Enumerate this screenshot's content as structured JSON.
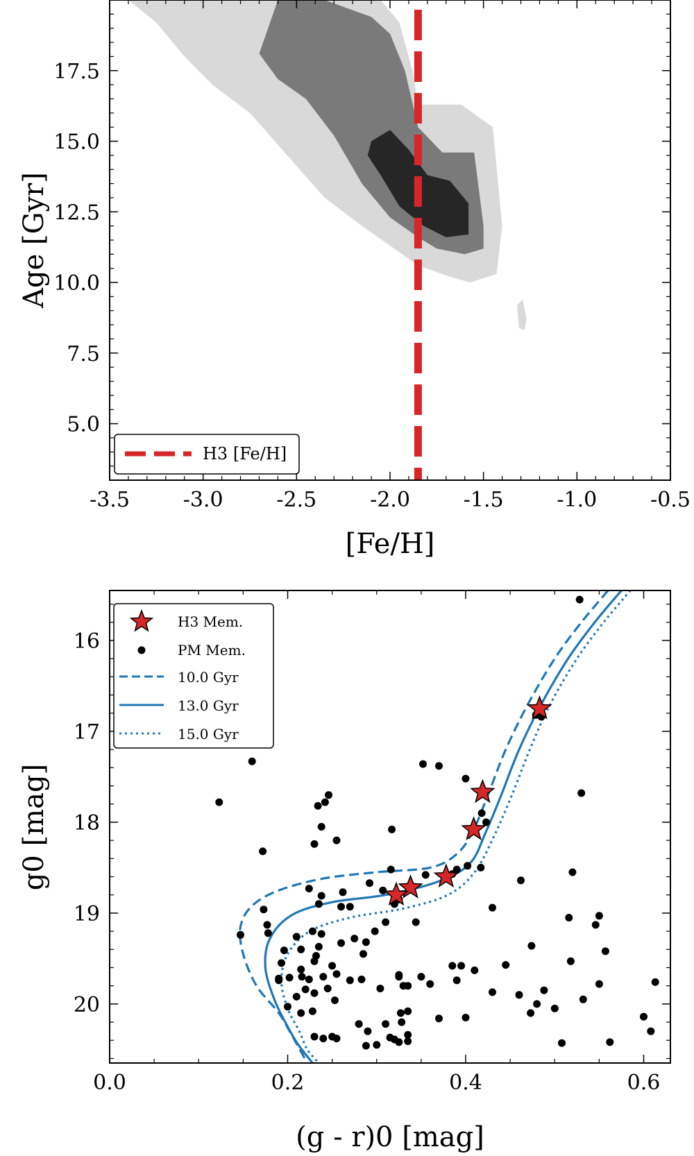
{
  "colors": {
    "contour_outer": "#d9d9d9",
    "contour_mid": "#7a7a7a",
    "contour_inner": "#262626",
    "h3_line": "#d62728",
    "isochrone": "#1f77b4",
    "star_fill": "#d62728",
    "pm_point": "#000000"
  },
  "chart_data": [
    {
      "type": "contour",
      "title": "",
      "xlabel": "[Fe/H]",
      "ylabel": "Age [Gyr]",
      "xlim": [
        -3.5,
        -0.5
      ],
      "ylim": [
        3.0,
        20.0
      ],
      "xticks": [
        -3.5,
        -3.0,
        -2.5,
        -2.0,
        -1.5,
        -1.0,
        -0.5
      ],
      "xtick_labels": [
        "-3.5",
        "-3.0",
        "-2.5",
        "-2.0",
        "-1.5",
        "-1.0",
        "-0.5"
      ],
      "yticks": [
        5.0,
        7.5,
        10.0,
        12.5,
        15.0,
        17.5
      ],
      "ytick_labels": [
        "5.0",
        "7.5",
        "10.0",
        "12.5",
        "15.0",
        "17.5"
      ],
      "h3_feh": -1.85,
      "legend": {
        "location": "lower-left",
        "entries": [
          {
            "label": "H3 [Fe/H]",
            "style": "dashed-red"
          }
        ]
      },
      "contours": [
        {
          "level": "outer",
          "points": [
            [
              -3.4,
              20.0
            ],
            [
              -2.05,
              20.0
            ],
            [
              -1.95,
              19.2
            ],
            [
              -1.88,
              17.5
            ],
            [
              -1.85,
              16.3
            ],
            [
              -1.62,
              16.3
            ],
            [
              -1.45,
              15.5
            ],
            [
              -1.4,
              12.0
            ],
            [
              -1.43,
              10.3
            ],
            [
              -1.57,
              10.0
            ],
            [
              -1.68,
              10.2
            ],
            [
              -1.85,
              10.6
            ],
            [
              -2.0,
              11.3
            ],
            [
              -2.15,
              12.0
            ],
            [
              -2.35,
              13.0
            ],
            [
              -2.55,
              14.5
            ],
            [
              -2.75,
              16.0
            ],
            [
              -2.95,
              17.0
            ],
            [
              -3.1,
              18.0
            ],
            [
              -3.25,
              19.2
            ]
          ]
        },
        {
          "level": "outer-island",
          "points": [
            [
              -1.32,
              9.2
            ],
            [
              -1.29,
              9.4
            ],
            [
              -1.27,
              8.7
            ],
            [
              -1.28,
              8.3
            ],
            [
              -1.31,
              8.4
            ]
          ]
        },
        {
          "level": "mid",
          "points": [
            [
              -2.6,
              20.0
            ],
            [
              -2.35,
              20.0
            ],
            [
              -2.1,
              19.4
            ],
            [
              -2.0,
              18.8
            ],
            [
              -1.92,
              17.5
            ],
            [
              -1.85,
              15.5
            ],
            [
              -1.72,
              14.6
            ],
            [
              -1.55,
              14.6
            ],
            [
              -1.5,
              12.0
            ],
            [
              -1.5,
              11.2
            ],
            [
              -1.6,
              11.0
            ],
            [
              -1.75,
              11.2
            ],
            [
              -1.85,
              11.6
            ],
            [
              -2.0,
              12.3
            ],
            [
              -2.15,
              13.5
            ],
            [
              -2.3,
              15.2
            ],
            [
              -2.45,
              16.5
            ],
            [
              -2.6,
              17.2
            ],
            [
              -2.7,
              18.1
            ]
          ]
        },
        {
          "level": "inner",
          "points": [
            [
              -2.1,
              15.0
            ],
            [
              -2.0,
              15.4
            ],
            [
              -1.9,
              14.7
            ],
            [
              -1.8,
              13.8
            ],
            [
              -1.68,
              13.6
            ],
            [
              -1.58,
              12.8
            ],
            [
              -1.58,
              11.7
            ],
            [
              -1.7,
              11.6
            ],
            [
              -1.82,
              12.0
            ],
            [
              -1.95,
              12.7
            ],
            [
              -2.05,
              13.8
            ],
            [
              -2.12,
              14.5
            ]
          ]
        }
      ]
    },
    {
      "type": "scatter",
      "title": "",
      "xlabel": "(g - r)0 [mag]",
      "ylabel": "g0 [mag]",
      "xlim": [
        0.0,
        0.63
      ],
      "ylim": [
        20.65,
        15.45
      ],
      "xticks": [
        0.0,
        0.2,
        0.4,
        0.6
      ],
      "xtick_labels": [
        "0.0",
        "0.2",
        "0.4",
        "0.6"
      ],
      "yticks": [
        16,
        17,
        18,
        19,
        20
      ],
      "ytick_labels": [
        "16",
        "17",
        "18",
        "19",
        "20"
      ],
      "legend": {
        "location": "top-left",
        "entries": [
          {
            "label": "H3 Mem.",
            "style": "red-star"
          },
          {
            "label": "PM Mem.",
            "style": "black-dot"
          },
          {
            "label": "10.0 Gyr",
            "style": "dashed-blue"
          },
          {
            "label": "13.0 Gyr",
            "style": "solid-blue"
          },
          {
            "label": "15.0 Gyr",
            "style": "dotted-blue"
          }
        ]
      },
      "isochrones": [
        {
          "name": "10.0 Gyr",
          "style": "dashed",
          "points": [
            [
              0.56,
              15.45
            ],
            [
              0.53,
              15.8
            ],
            [
              0.5,
              16.2
            ],
            [
              0.47,
              16.7
            ],
            [
              0.445,
              17.2
            ],
            [
              0.425,
              17.7
            ],
            [
              0.408,
              18.1
            ],
            [
              0.39,
              18.35
            ],
            [
              0.36,
              18.5
            ],
            [
              0.3,
              18.55
            ],
            [
              0.24,
              18.62
            ],
            [
              0.19,
              18.75
            ],
            [
              0.16,
              18.92
            ],
            [
              0.147,
              19.15
            ],
            [
              0.15,
              19.45
            ],
            [
              0.165,
              19.8
            ],
            [
              0.19,
              20.1
            ],
            [
              0.205,
              20.35
            ],
            [
              0.222,
              20.65
            ]
          ]
        },
        {
          "name": "13.0 Gyr",
          "style": "solid",
          "points": [
            [
              0.575,
              15.45
            ],
            [
              0.545,
              15.8
            ],
            [
              0.515,
              16.2
            ],
            [
              0.485,
              16.7
            ],
            [
              0.46,
              17.2
            ],
            [
              0.44,
              17.7
            ],
            [
              0.423,
              18.1
            ],
            [
              0.405,
              18.45
            ],
            [
              0.37,
              18.65
            ],
            [
              0.31,
              18.8
            ],
            [
              0.25,
              18.88
            ],
            [
              0.205,
              19.02
            ],
            [
              0.18,
              19.28
            ],
            [
              0.175,
              19.6
            ],
            [
              0.185,
              19.95
            ],
            [
              0.2,
              20.25
            ],
            [
              0.212,
              20.45
            ],
            [
              0.228,
              20.65
            ]
          ]
        },
        {
          "name": "15.0 Gyr",
          "style": "dotted",
          "points": [
            [
              0.585,
              15.45
            ],
            [
              0.555,
              15.8
            ],
            [
              0.525,
              16.2
            ],
            [
              0.495,
              16.7
            ],
            [
              0.472,
              17.2
            ],
            [
              0.452,
              17.7
            ],
            [
              0.432,
              18.15
            ],
            [
              0.41,
              18.55
            ],
            [
              0.38,
              18.8
            ],
            [
              0.33,
              18.95
            ],
            [
              0.27,
              19.05
            ],
            [
              0.225,
              19.2
            ],
            [
              0.2,
              19.45
            ],
            [
              0.193,
              19.75
            ],
            [
              0.2,
              20.05
            ],
            [
              0.213,
              20.3
            ],
            [
              0.222,
              20.5
            ],
            [
              0.235,
              20.65
            ]
          ]
        }
      ],
      "h3_members": [
        [
          0.483,
          16.75
        ],
        [
          0.419,
          17.67
        ],
        [
          0.409,
          18.08
        ],
        [
          0.378,
          18.6
        ],
        [
          0.338,
          18.72
        ],
        [
          0.322,
          18.8
        ]
      ],
      "pm_members": [
        [
          0.528,
          15.55
        ],
        [
          0.479,
          16.82
        ],
        [
          0.485,
          16.84
        ],
        [
          0.16,
          17.33
        ],
        [
          0.352,
          17.36
        ],
        [
          0.37,
          17.38
        ],
        [
          0.123,
          17.78
        ],
        [
          0.246,
          17.7
        ],
        [
          0.242,
          17.78
        ],
        [
          0.234,
          17.82
        ],
        [
          0.4,
          17.52
        ],
        [
          0.53,
          17.68
        ],
        [
          0.418,
          17.9
        ],
        [
          0.238,
          18.05
        ],
        [
          0.423,
          18.0
        ],
        [
          0.172,
          18.32
        ],
        [
          0.255,
          18.2
        ],
        [
          0.23,
          18.24
        ],
        [
          0.317,
          18.08
        ],
        [
          0.402,
          18.48
        ],
        [
          0.417,
          18.5
        ],
        [
          0.385,
          18.57
        ],
        [
          0.355,
          18.58
        ],
        [
          0.39,
          18.52
        ],
        [
          0.316,
          18.52
        ],
        [
          0.462,
          18.64
        ],
        [
          0.52,
          18.55
        ],
        [
          0.292,
          18.67
        ],
        [
          0.224,
          18.73
        ],
        [
          0.307,
          18.75
        ],
        [
          0.262,
          18.77
        ],
        [
          0.238,
          18.81
        ],
        [
          0.325,
          18.85
        ],
        [
          0.173,
          18.96
        ],
        [
          0.235,
          18.9
        ],
        [
          0.26,
          18.93
        ],
        [
          0.27,
          18.93
        ],
        [
          0.32,
          18.9
        ],
        [
          0.43,
          18.94
        ],
        [
          0.177,
          19.13
        ],
        [
          0.178,
          19.22
        ],
        [
          0.147,
          19.24
        ],
        [
          0.21,
          19.26
        ],
        [
          0.228,
          19.2
        ],
        [
          0.238,
          19.23
        ],
        [
          0.275,
          19.28
        ],
        [
          0.288,
          19.32
        ],
        [
          0.298,
          19.2
        ],
        [
          0.31,
          19.1
        ],
        [
          0.344,
          19.1
        ],
        [
          0.26,
          19.33
        ],
        [
          0.235,
          19.37
        ],
        [
          0.215,
          19.4
        ],
        [
          0.196,
          19.41
        ],
        [
          0.285,
          19.45
        ],
        [
          0.232,
          19.47
        ],
        [
          0.23,
          19.53
        ],
        [
          0.215,
          19.62
        ],
        [
          0.25,
          19.58
        ],
        [
          0.24,
          19.7
        ],
        [
          0.255,
          19.67
        ],
        [
          0.193,
          19.55
        ],
        [
          0.19,
          19.72
        ],
        [
          0.202,
          19.71
        ],
        [
          0.216,
          19.7
        ],
        [
          0.19,
          19.74
        ],
        [
          0.27,
          19.74
        ],
        [
          0.283,
          19.73
        ],
        [
          0.224,
          19.73
        ],
        [
          0.325,
          19.68
        ],
        [
          0.33,
          19.8
        ],
        [
          0.36,
          19.78
        ],
        [
          0.385,
          19.58
        ],
        [
          0.395,
          19.58
        ],
        [
          0.41,
          19.63
        ],
        [
          0.445,
          19.57
        ],
        [
          0.35,
          19.7
        ],
        [
          0.39,
          19.74
        ],
        [
          0.325,
          19.7
        ],
        [
          0.304,
          19.83
        ],
        [
          0.335,
          19.8
        ],
        [
          0.22,
          19.84
        ],
        [
          0.245,
          19.83
        ],
        [
          0.253,
          19.96
        ],
        [
          0.23,
          19.88
        ],
        [
          0.21,
          19.92
        ],
        [
          0.2,
          20.03
        ],
        [
          0.228,
          20.08
        ],
        [
          0.215,
          20.1
        ],
        [
          0.335,
          20.08
        ],
        [
          0.327,
          20.1
        ],
        [
          0.328,
          20.2
        ],
        [
          0.31,
          20.22
        ],
        [
          0.37,
          20.16
        ],
        [
          0.4,
          20.15
        ],
        [
          0.43,
          19.87
        ],
        [
          0.46,
          19.9
        ],
        [
          0.473,
          20.1
        ],
        [
          0.48,
          20.0
        ],
        [
          0.488,
          19.85
        ],
        [
          0.5,
          20.05
        ],
        [
          0.474,
          19.36
        ],
        [
          0.516,
          19.05
        ],
        [
          0.518,
          19.53
        ],
        [
          0.532,
          19.95
        ],
        [
          0.546,
          19.13
        ],
        [
          0.55,
          19.03
        ],
        [
          0.557,
          19.42
        ],
        [
          0.55,
          19.78
        ],
        [
          0.6,
          20.14
        ],
        [
          0.613,
          19.76
        ],
        [
          0.608,
          20.3
        ],
        [
          0.562,
          20.42
        ],
        [
          0.508,
          20.43
        ],
        [
          0.23,
          20.36
        ],
        [
          0.24,
          20.38
        ],
        [
          0.25,
          20.36
        ],
        [
          0.255,
          20.38
        ],
        [
          0.28,
          20.22
        ],
        [
          0.29,
          20.3
        ],
        [
          0.288,
          20.46
        ],
        [
          0.3,
          20.45
        ],
        [
          0.315,
          20.37
        ],
        [
          0.32,
          20.39
        ],
        [
          0.325,
          20.42
        ],
        [
          0.335,
          20.41
        ],
        [
          0.335,
          20.34
        ]
      ]
    }
  ]
}
